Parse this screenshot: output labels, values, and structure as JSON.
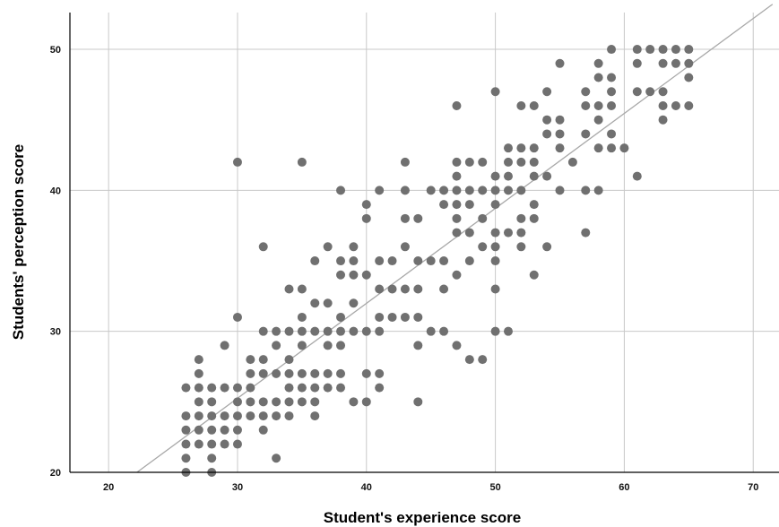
{
  "chart_data": {
    "type": "scatter",
    "xlabel": "Student's experience score",
    "ylabel": "Students' perception score",
    "xlim": [
      17,
      72
    ],
    "ylim": [
      20,
      53.5
    ],
    "xticks": [
      20,
      30,
      40,
      50,
      60,
      70
    ],
    "yticks": [
      20,
      30,
      40,
      50
    ],
    "grid": true,
    "colors": {
      "points": "#707070",
      "fit_line": "#a8a8a8",
      "grid": "#c8c8c8",
      "axis": "#000000"
    },
    "fit_line": {
      "x": [
        22.2,
        71.5
      ],
      "y": [
        20,
        53.2
      ]
    },
    "points": [
      [
        26,
        26
      ],
      [
        27,
        26
      ],
      [
        28,
        26
      ],
      [
        29,
        26
      ],
      [
        30,
        26
      ],
      [
        26,
        24
      ],
      [
        27,
        24
      ],
      [
        28,
        24
      ],
      [
        29,
        24
      ],
      [
        30,
        24
      ],
      [
        26,
        23
      ],
      [
        27,
        23
      ],
      [
        28,
        23
      ],
      [
        29,
        23
      ],
      [
        30,
        23
      ],
      [
        26,
        22
      ],
      [
        27,
        22
      ],
      [
        28,
        22
      ],
      [
        29,
        22
      ],
      [
        30,
        22
      ],
      [
        26,
        21
      ],
      [
        28,
        21
      ],
      [
        26,
        20
      ],
      [
        28,
        20
      ],
      [
        27,
        25
      ],
      [
        28,
        25
      ],
      [
        30,
        25
      ],
      [
        31,
        25
      ],
      [
        27,
        27
      ],
      [
        27,
        28
      ],
      [
        29,
        29
      ],
      [
        30,
        31
      ],
      [
        30,
        42
      ],
      [
        31,
        26
      ],
      [
        31,
        24
      ],
      [
        31,
        27
      ],
      [
        31,
        28
      ],
      [
        32,
        27
      ],
      [
        32,
        28
      ],
      [
        32,
        30
      ],
      [
        32,
        36
      ],
      [
        32,
        25
      ],
      [
        32,
        24
      ],
      [
        32,
        23
      ],
      [
        33,
        30
      ],
      [
        33,
        29
      ],
      [
        33,
        27
      ],
      [
        33,
        25
      ],
      [
        33,
        24
      ],
      [
        33,
        21
      ],
      [
        34,
        33
      ],
      [
        34,
        30
      ],
      [
        34,
        28
      ],
      [
        34,
        27
      ],
      [
        34,
        26
      ],
      [
        34,
        25
      ],
      [
        34,
        24
      ],
      [
        35,
        33
      ],
      [
        35,
        31
      ],
      [
        35,
        30
      ],
      [
        35,
        29
      ],
      [
        35,
        27
      ],
      [
        35,
        26
      ],
      [
        35,
        25
      ],
      [
        35,
        42
      ],
      [
        36,
        35
      ],
      [
        36,
        32
      ],
      [
        36,
        30
      ],
      [
        36,
        27
      ],
      [
        36,
        26
      ],
      [
        36,
        25
      ],
      [
        36,
        24
      ],
      [
        37,
        36
      ],
      [
        37,
        32
      ],
      [
        37,
        30
      ],
      [
        37,
        29
      ],
      [
        37,
        27
      ],
      [
        37,
        26
      ],
      [
        38,
        35
      ],
      [
        38,
        34
      ],
      [
        38,
        31
      ],
      [
        38,
        30
      ],
      [
        38,
        29
      ],
      [
        38,
        27
      ],
      [
        38,
        26
      ],
      [
        38,
        40
      ],
      [
        39,
        36
      ],
      [
        39,
        35
      ],
      [
        39,
        34
      ],
      [
        39,
        32
      ],
      [
        39,
        30
      ],
      [
        39,
        25
      ],
      [
        40,
        39
      ],
      [
        40,
        38
      ],
      [
        40,
        34
      ],
      [
        40,
        30
      ],
      [
        40,
        27
      ],
      [
        40,
        25
      ],
      [
        41,
        40
      ],
      [
        41,
        35
      ],
      [
        41,
        33
      ],
      [
        41,
        31
      ],
      [
        41,
        30
      ],
      [
        41,
        27
      ],
      [
        41,
        26
      ],
      [
        42,
        35
      ],
      [
        42,
        33
      ],
      [
        42,
        31
      ],
      [
        43,
        42
      ],
      [
        43,
        40
      ],
      [
        43,
        38
      ],
      [
        43,
        36
      ],
      [
        43,
        33
      ],
      [
        43,
        31
      ],
      [
        44,
        38
      ],
      [
        44,
        35
      ],
      [
        44,
        33
      ],
      [
        44,
        31
      ],
      [
        44,
        29
      ],
      [
        44,
        25
      ],
      [
        45,
        40
      ],
      [
        45,
        35
      ],
      [
        45,
        30
      ],
      [
        46,
        40
      ],
      [
        46,
        39
      ],
      [
        46,
        35
      ],
      [
        46,
        33
      ],
      [
        46,
        30
      ],
      [
        47,
        46
      ],
      [
        47,
        42
      ],
      [
        47,
        41
      ],
      [
        47,
        40
      ],
      [
        47,
        39
      ],
      [
        47,
        38
      ],
      [
        47,
        37
      ],
      [
        47,
        34
      ],
      [
        47,
        29
      ],
      [
        48,
        42
      ],
      [
        48,
        40
      ],
      [
        48,
        39
      ],
      [
        48,
        37
      ],
      [
        48,
        35
      ],
      [
        48,
        28
      ],
      [
        49,
        42
      ],
      [
        49,
        40
      ],
      [
        49,
        38
      ],
      [
        49,
        36
      ],
      [
        49,
        28
      ],
      [
        50,
        47
      ],
      [
        50,
        41
      ],
      [
        50,
        40
      ],
      [
        50,
        39
      ],
      [
        50,
        37
      ],
      [
        50,
        36
      ],
      [
        50,
        35
      ],
      [
        50,
        33
      ],
      [
        50,
        30
      ],
      [
        51,
        43
      ],
      [
        51,
        42
      ],
      [
        51,
        41
      ],
      [
        51,
        40
      ],
      [
        51,
        37
      ],
      [
        51,
        30
      ],
      [
        52,
        46
      ],
      [
        52,
        43
      ],
      [
        52,
        42
      ],
      [
        52,
        40
      ],
      [
        52,
        38
      ],
      [
        52,
        37
      ],
      [
        52,
        36
      ],
      [
        53,
        46
      ],
      [
        53,
        43
      ],
      [
        53,
        42
      ],
      [
        53,
        41
      ],
      [
        53,
        39
      ],
      [
        53,
        38
      ],
      [
        53,
        34
      ],
      [
        54,
        47
      ],
      [
        54,
        45
      ],
      [
        54,
        44
      ],
      [
        54,
        41
      ],
      [
        54,
        36
      ],
      [
        55,
        49
      ],
      [
        55,
        45
      ],
      [
        55,
        44
      ],
      [
        55,
        43
      ],
      [
        55,
        40
      ],
      [
        56,
        42
      ],
      [
        57,
        47
      ],
      [
        57,
        46
      ],
      [
        57,
        44
      ],
      [
        57,
        40
      ],
      [
        57,
        37
      ],
      [
        58,
        49
      ],
      [
        58,
        48
      ],
      [
        58,
        46
      ],
      [
        58,
        45
      ],
      [
        58,
        43
      ],
      [
        58,
        40
      ],
      [
        59,
        50
      ],
      [
        59,
        48
      ],
      [
        59,
        47
      ],
      [
        59,
        46
      ],
      [
        59,
        44
      ],
      [
        59,
        43
      ],
      [
        60,
        43
      ],
      [
        61,
        50
      ],
      [
        61,
        49
      ],
      [
        61,
        47
      ],
      [
        61,
        41
      ],
      [
        62,
        50
      ],
      [
        62,
        47
      ],
      [
        63,
        50
      ],
      [
        63,
        49
      ],
      [
        63,
        47
      ],
      [
        63,
        46
      ],
      [
        63,
        45
      ],
      [
        64,
        50
      ],
      [
        64,
        49
      ],
      [
        64,
        46
      ],
      [
        65,
        50
      ],
      [
        65,
        49
      ],
      [
        65,
        48
      ],
      [
        65,
        46
      ]
    ]
  }
}
